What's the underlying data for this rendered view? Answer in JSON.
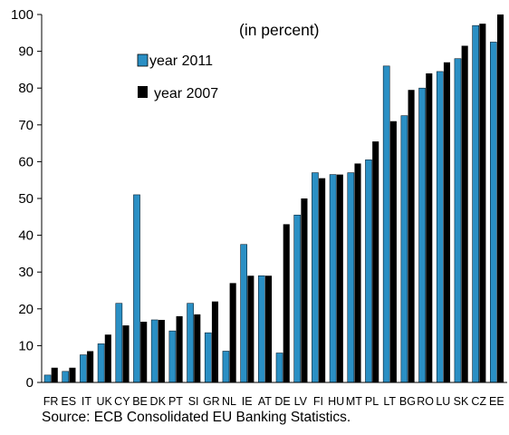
{
  "chart_data": {
    "type": "bar",
    "annotation": "(in percent)",
    "source": "Source: ECB Consolidated EU Banking Statistics.",
    "categories": [
      "FR",
      "ES",
      "IT",
      "UK",
      "CY",
      "BE",
      "DK",
      "PT",
      "SI",
      "GR",
      "NL",
      "IE",
      "AT",
      "DE",
      "LV",
      "FI",
      "HU",
      "MT",
      "PL",
      "LT",
      "BG",
      "RO",
      "LU",
      "SK",
      "CZ",
      "EE"
    ],
    "series": [
      {
        "name": "year 2011",
        "color": "#2a8fc4",
        "values": [
          2,
          3,
          7.5,
          10.5,
          21.5,
          51,
          17,
          14,
          21.5,
          13.5,
          8.5,
          37.5,
          29,
          8,
          45.5,
          57,
          56.5,
          57,
          60.5,
          86,
          72.5,
          80,
          84.5,
          88,
          97,
          92.5
        ]
      },
      {
        "name": "year 2007",
        "color": "#000000",
        "values": [
          4,
          4,
          8.5,
          13,
          15.5,
          16.5,
          17,
          18,
          18.5,
          22,
          27,
          29,
          29,
          43,
          50,
          55.5,
          56.5,
          59.5,
          65.5,
          71,
          79.5,
          84,
          87,
          91.5,
          97.5,
          100
        ]
      }
    ],
    "ylim": [
      0,
      100
    ],
    "yticks": [
      0,
      10,
      20,
      30,
      40,
      50,
      60,
      70,
      80,
      90,
      100
    ],
    "legend_position": "top-left inside"
  }
}
